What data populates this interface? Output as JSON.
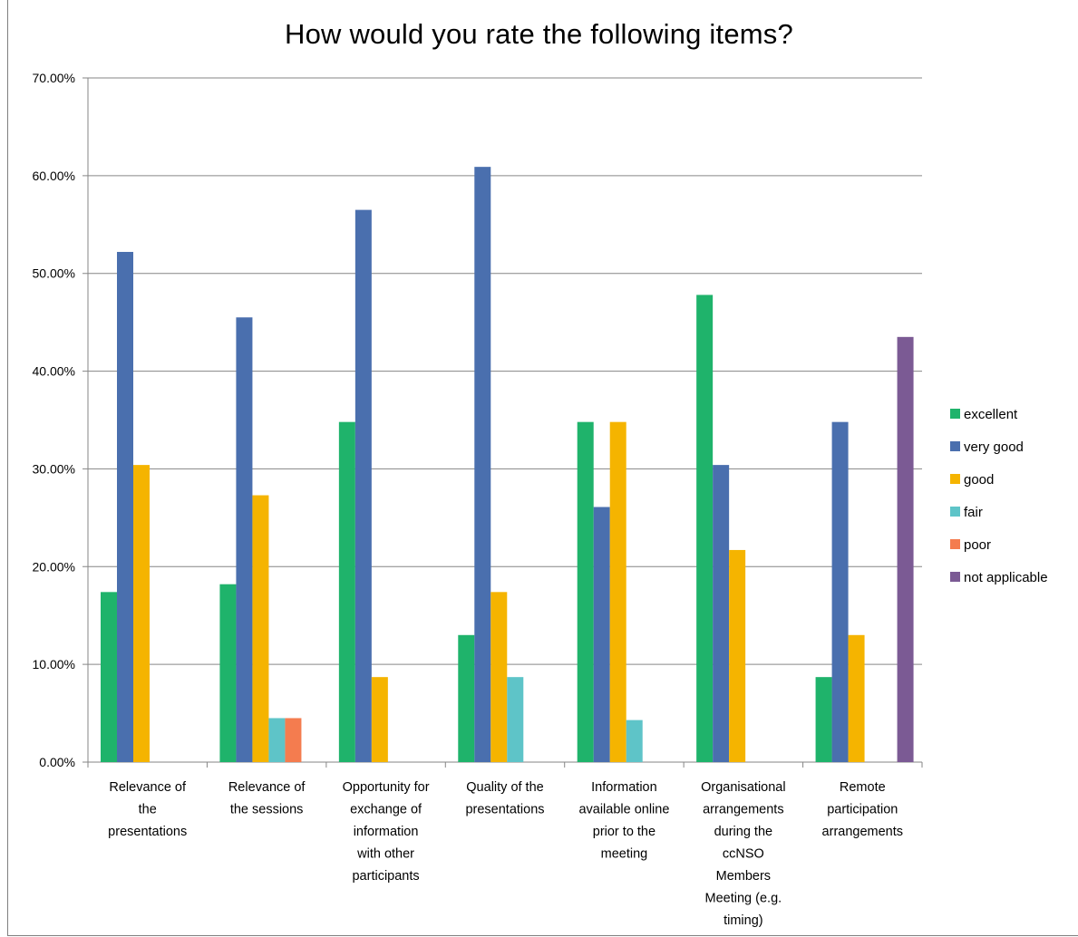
{
  "chart_data": {
    "type": "bar",
    "title": "How would you rate the following items?",
    "xlabel": "",
    "ylabel": "",
    "ylim": [
      0,
      70
    ],
    "yticks": [
      "0.00%",
      "10.00%",
      "20.00%",
      "30.00%",
      "40.00%",
      "50.00%",
      "60.00%",
      "70.00%"
    ],
    "grid": true,
    "legend_position": "right",
    "categories": [
      [
        "Relevance of",
        "the",
        "presentations"
      ],
      [
        "Relevance of",
        "the sessions"
      ],
      [
        "Opportunity for",
        "exchange of",
        "information",
        "with other",
        "participants"
      ],
      [
        "Quality of the",
        "presentations"
      ],
      [
        "Information",
        "available online",
        "prior to the",
        "meeting"
      ],
      [
        "Organisational",
        "arrangements",
        "during the",
        "ccNSO",
        "Members",
        "Meeting (e.g.",
        "timing)"
      ],
      [
        "Remote",
        "participation",
        "arrangements"
      ]
    ],
    "series": [
      {
        "name": "excellent",
        "color": "#1fb36b",
        "values": [
          17.4,
          18.2,
          34.8,
          13.0,
          34.8,
          47.8,
          8.7
        ]
      },
      {
        "name": "very good",
        "color": "#4a6fae",
        "values": [
          52.2,
          45.5,
          56.5,
          60.9,
          26.1,
          30.4,
          34.8
        ]
      },
      {
        "name": "good",
        "color": "#f5b400",
        "values": [
          30.4,
          27.3,
          8.7,
          17.4,
          34.8,
          21.7,
          13.0
        ]
      },
      {
        "name": "fair",
        "color": "#5ec4c8",
        "values": [
          0,
          4.5,
          0,
          8.7,
          4.3,
          0,
          0
        ]
      },
      {
        "name": "poor",
        "color": "#f47c4f",
        "values": [
          0,
          4.5,
          0,
          0,
          0,
          0,
          0
        ]
      },
      {
        "name": "not applicable",
        "color": "#7b5a94",
        "values": [
          0,
          0,
          0,
          0,
          0,
          0,
          43.5
        ]
      }
    ]
  }
}
